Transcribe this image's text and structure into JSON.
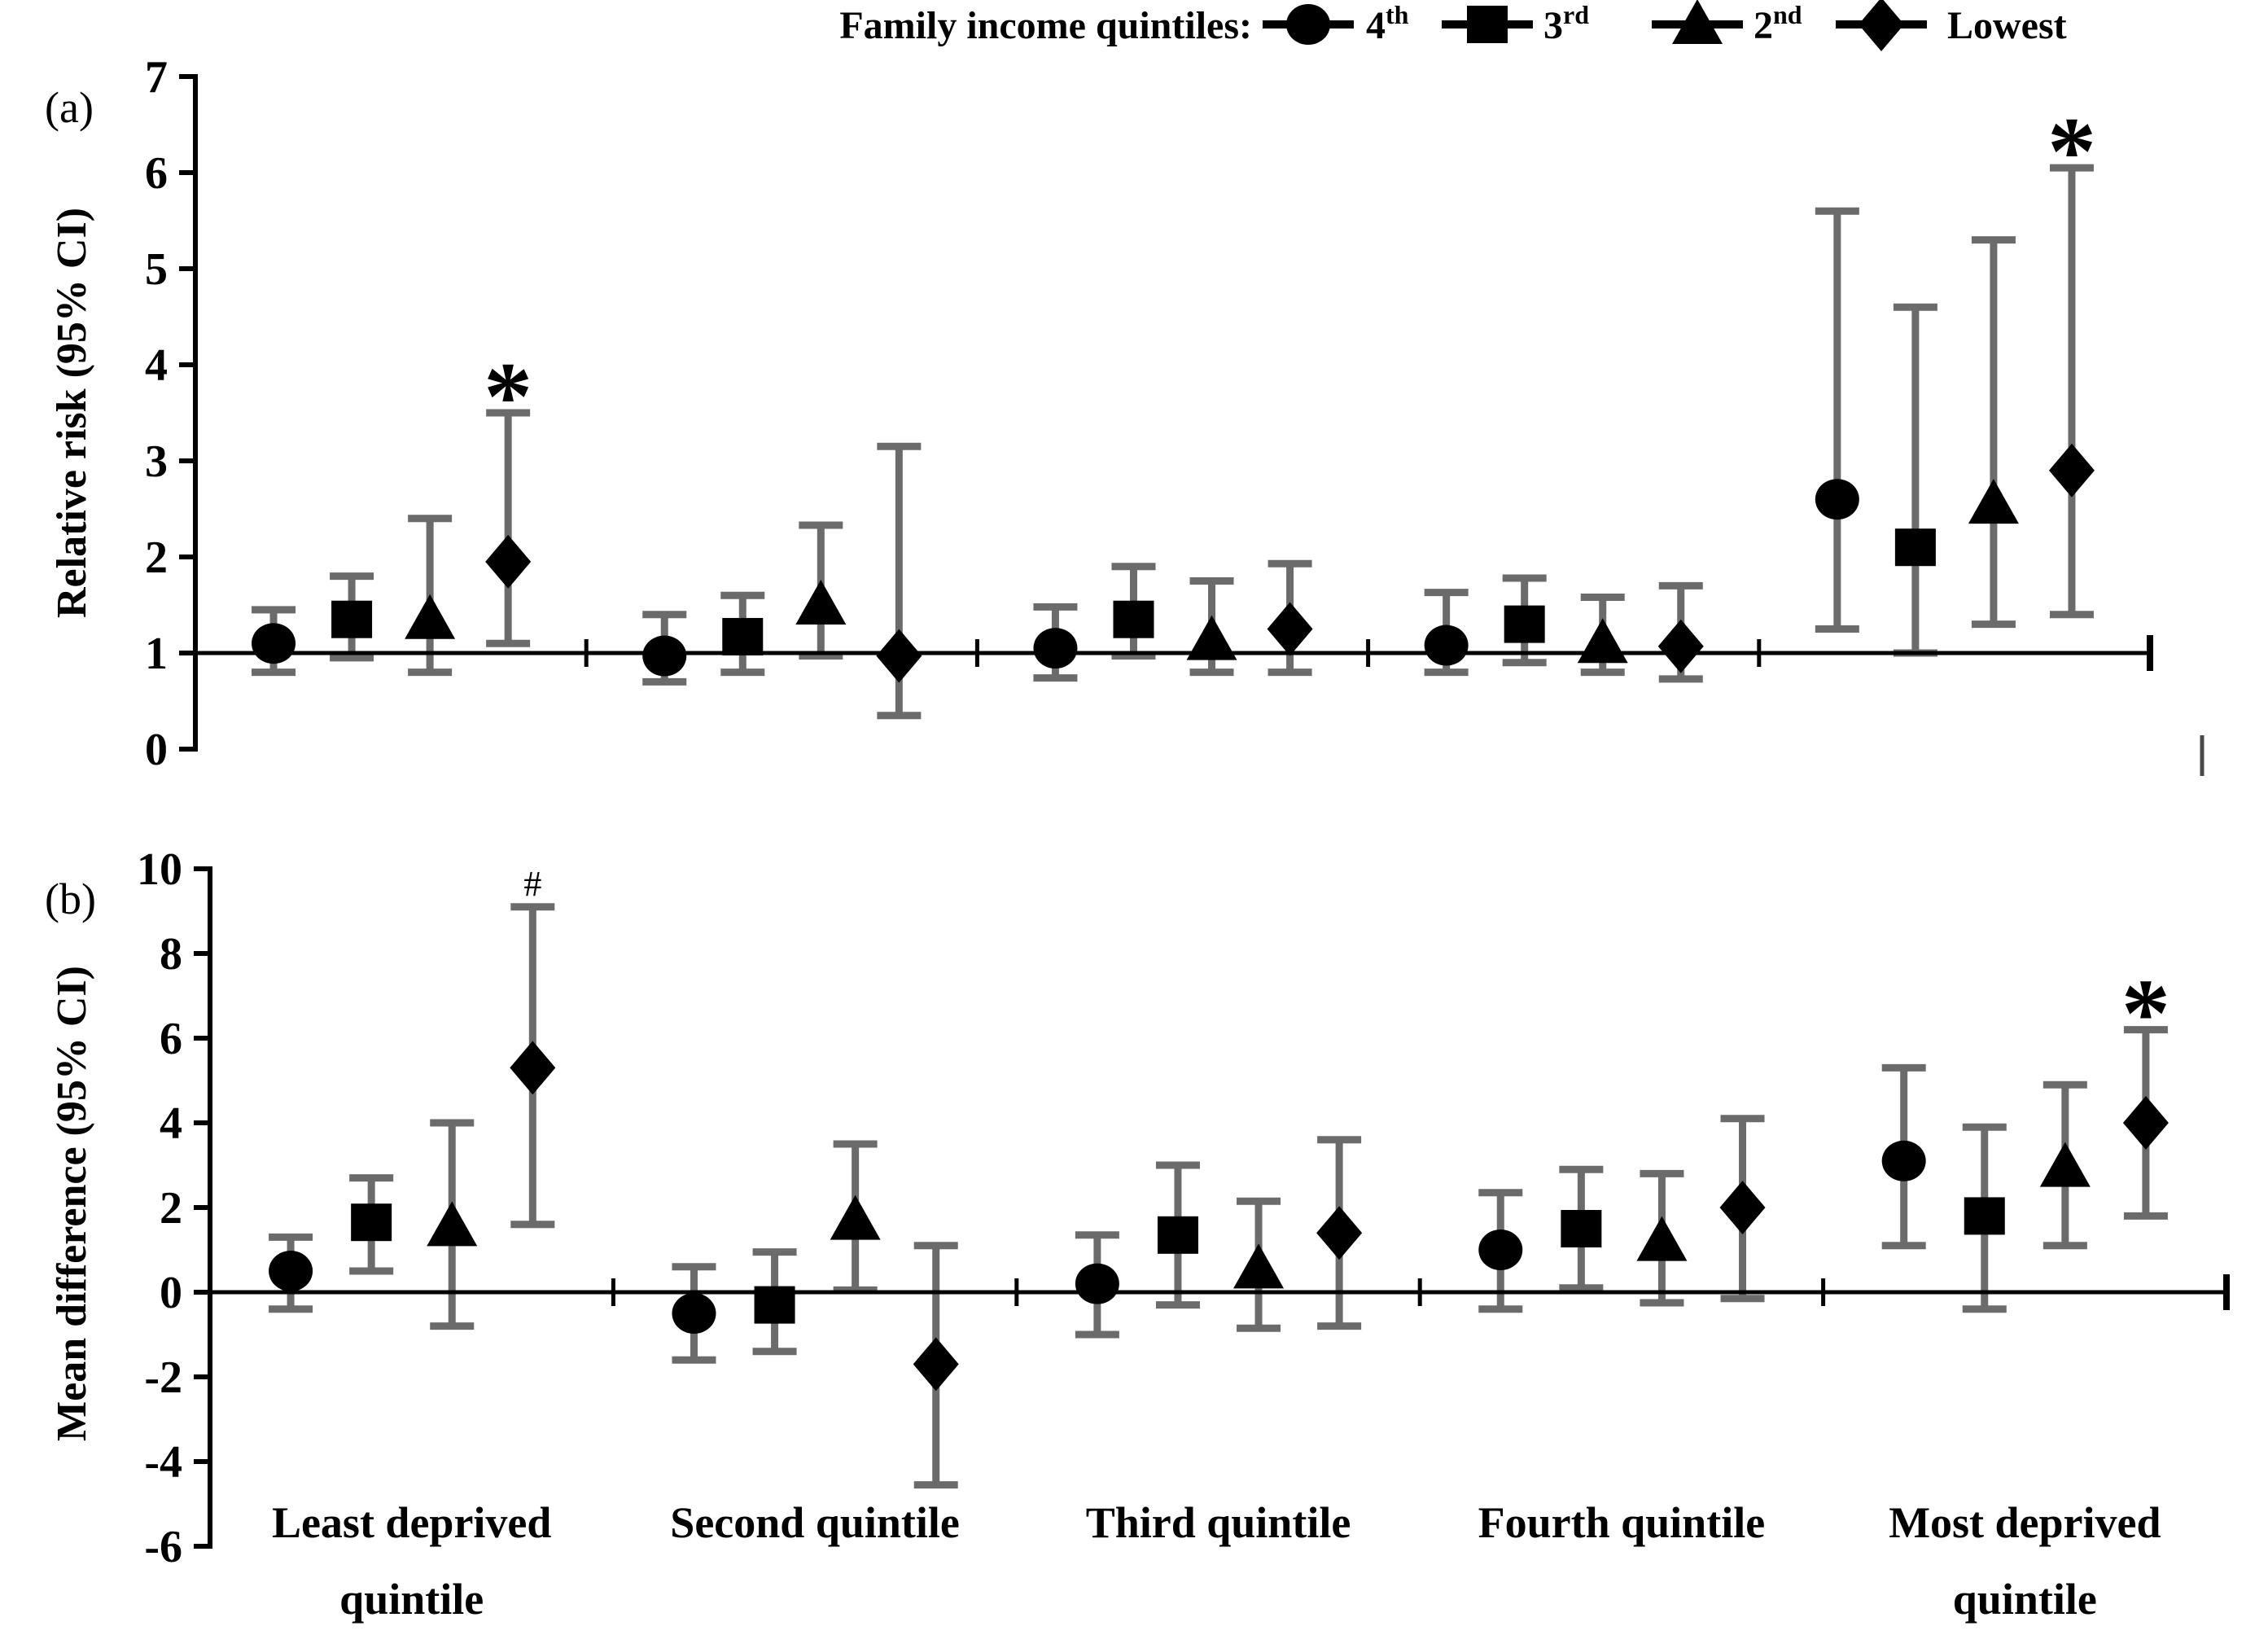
{
  "figure": {
    "background": "#ffffff",
    "ink_color": "#000000",
    "error_bar_color": "#6b6b6b",
    "legend": {
      "title": "Family income quintiles:",
      "items": [
        {
          "marker": "circle-icon",
          "text": "4",
          "sup": "th"
        },
        {
          "marker": "square-icon",
          "text": "3",
          "sup": "rd"
        },
        {
          "marker": "triangle-icon",
          "text": "2",
          "sup": "nd"
        },
        {
          "marker": "diamond-icon",
          "text": "Lowest",
          "sup": ""
        }
      ]
    }
  },
  "chart_data": [
    {
      "type": "scatter",
      "panel_label": "(a)",
      "title": "",
      "xlabel": "",
      "ylabel": "Relative risk (95% CI)",
      "ylim": [
        0,
        7
      ],
      "yticks": [
        7,
        6,
        5,
        4,
        3,
        2,
        1,
        0
      ],
      "reference_line": 1,
      "grid": false,
      "legend_position": "top",
      "show_category_labels": false,
      "categories": [
        "Least deprived quintile",
        "Second quintile",
        "Third quintile",
        "Fourth quintile",
        "Most deprived quintile"
      ],
      "series": [
        {
          "name": "4th",
          "marker": "circle",
          "values": [
            1.1,
            0.97,
            1.05,
            1.08,
            2.6
          ],
          "ci_low": [
            0.8,
            0.7,
            0.74,
            0.8,
            1.25
          ],
          "ci_high": [
            1.45,
            1.4,
            1.48,
            1.63,
            5.6
          ]
        },
        {
          "name": "3rd",
          "marker": "square",
          "values": [
            1.35,
            1.17,
            1.35,
            1.3,
            2.1
          ],
          "ci_low": [
            0.95,
            0.8,
            0.97,
            0.9,
            1.0
          ],
          "ci_high": [
            1.8,
            1.6,
            1.9,
            1.78,
            4.6
          ]
        },
        {
          "name": "2nd",
          "marker": "triangle",
          "values": [
            1.35,
            1.5,
            1.13,
            1.1,
            2.55
          ],
          "ci_low": [
            0.8,
            0.97,
            0.8,
            0.8,
            1.3
          ],
          "ci_high": [
            2.4,
            2.33,
            1.75,
            1.58,
            5.3
          ]
        },
        {
          "name": "Lowest",
          "marker": "diamond",
          "values": [
            1.95,
            0.97,
            1.25,
            1.07,
            2.9
          ],
          "ci_low": [
            1.1,
            0.35,
            0.8,
            0.73,
            1.4
          ],
          "ci_high": [
            3.5,
            3.15,
            1.93,
            1.7,
            6.05
          ]
        }
      ],
      "annotations": [
        {
          "series": "Lowest",
          "category_index": 0,
          "text": "*"
        },
        {
          "series": "Lowest",
          "category_index": 4,
          "text": "*"
        }
      ]
    },
    {
      "type": "scatter",
      "panel_label": "(b)",
      "title": "",
      "xlabel": "",
      "ylabel": "Mean difference (95% CI)",
      "ylim": [
        -6,
        10
      ],
      "yticks": [
        10,
        8,
        6,
        4,
        2,
        0,
        -2,
        -4,
        -6
      ],
      "reference_line": 0,
      "grid": false,
      "legend_position": "none",
      "show_category_labels": true,
      "categories": [
        "Least deprived quintile",
        "Second quintile",
        "Third quintile",
        "Fourth quintile",
        "Most deprived quintile"
      ],
      "category_label_lines": [
        [
          "Least deprived",
          "quintile"
        ],
        [
          "Second quintile"
        ],
        [
          "Third quintile"
        ],
        [
          "Fourth quintile"
        ],
        [
          "Most deprived",
          "quintile"
        ]
      ],
      "series": [
        {
          "name": "4th",
          "marker": "circle",
          "values": [
            0.5,
            -0.5,
            0.2,
            1.0,
            3.1
          ],
          "ci_low": [
            -0.4,
            -1.6,
            -1.0,
            -0.4,
            1.1
          ],
          "ci_high": [
            1.3,
            0.6,
            1.35,
            2.35,
            5.3
          ]
        },
        {
          "name": "3rd",
          "marker": "square",
          "values": [
            1.65,
            -0.3,
            1.35,
            1.5,
            1.8
          ],
          "ci_low": [
            0.5,
            -1.4,
            -0.3,
            0.1,
            -0.4
          ],
          "ci_high": [
            2.7,
            0.95,
            3.0,
            2.9,
            3.9
          ]
        },
        {
          "name": "2nd",
          "marker": "triangle",
          "values": [
            1.55,
            1.7,
            0.55,
            1.2,
            2.95
          ],
          "ci_low": [
            -0.8,
            0.05,
            -0.85,
            -0.25,
            1.1
          ],
          "ci_high": [
            4.0,
            3.5,
            2.15,
            2.8,
            4.9
          ]
        },
        {
          "name": "Lowest",
          "marker": "diamond",
          "values": [
            5.3,
            -1.7,
            1.4,
            2.0,
            4.0
          ],
          "ci_low": [
            1.6,
            -4.55,
            -0.8,
            -0.15,
            1.8
          ],
          "ci_high": [
            9.1,
            1.1,
            3.6,
            4.1,
            6.2
          ]
        }
      ],
      "annotations": [
        {
          "series": "Lowest",
          "category_index": 0,
          "text": "#"
        },
        {
          "series": "Lowest",
          "category_index": 4,
          "text": "*"
        }
      ]
    }
  ]
}
